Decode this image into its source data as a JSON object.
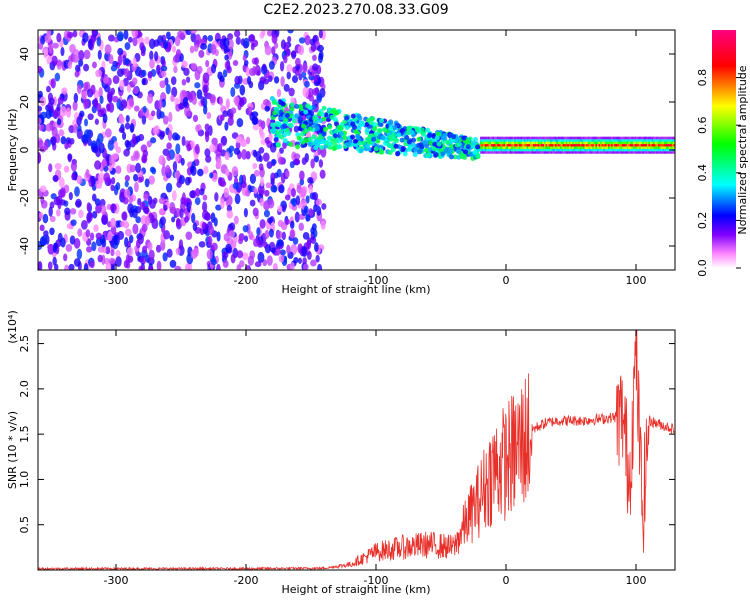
{
  "title": "C2E2.2023.270.08.33.G09",
  "chart_data": [
    {
      "type": "heatmap",
      "xlabel": "Height of straight line (km)",
      "ylabel": "Frequency (Hz)",
      "xlim": [
        -360,
        130
      ],
      "ylim": [
        -50,
        50
      ],
      "x_ticks": [
        -300,
        -200,
        -100,
        0,
        100
      ],
      "y_ticks": [
        -40,
        -20,
        0,
        20,
        40
      ],
      "colorbar": {
        "label": "Normalized spectral amplitude",
        "range": [
          0.0,
          1.0
        ],
        "ticks": [
          0.0,
          0.2,
          0.4,
          0.6,
          0.8
        ],
        "colormap": [
          "#ffffff",
          "#ff88ff",
          "#8000ff",
          "#0000ff",
          "#00ffff",
          "#00ff00",
          "#ffff00",
          "#ff0000",
          "#ff0080"
        ]
      },
      "regions": [
        {
          "description_x_range": [
            -360,
            -140
          ],
          "freq_range": [
            -50,
            50
          ],
          "amplitude_range": [
            0.05,
            0.25
          ]
        },
        {
          "description_x_range": [
            -180,
            -20
          ],
          "freq_center": [
            12,
            0
          ],
          "freq_halfwidth": [
            10,
            4
          ],
          "amplitude_range": [
            0.2,
            0.5
          ]
        },
        {
          "description_x_range": [
            -20,
            130
          ],
          "freq_center": 2,
          "freq_halfwidth": 3,
          "amplitude_range": [
            0.4,
            0.95
          ]
        }
      ]
    },
    {
      "type": "line",
      "xlabel": "Height of straight line (km)",
      "ylabel": "SNR (10 * v/v)",
      "y_scale_label": "(x10⁴)",
      "xlim": [
        -360,
        130
      ],
      "ylim": [
        0,
        26500
      ],
      "x_ticks": [
        -300,
        -200,
        -100,
        0,
        100
      ],
      "y_ticks": [
        5000,
        10000,
        15000,
        20000,
        25000
      ],
      "y_tick_labels": [
        "0.5",
        "1.0",
        "1.5",
        "2.0",
        "2.5"
      ],
      "series": [
        {
          "color": "#e8302a",
          "x": [
            -360,
            -300,
            -200,
            -140,
            -120,
            -100,
            -80,
            -60,
            -40,
            -30,
            -20,
            -10,
            0,
            10,
            20,
            30,
            40,
            60,
            80,
            90,
            95,
            100,
            105,
            110,
            120,
            130
          ],
          "y": [
            150,
            150,
            150,
            200,
            600,
            2000,
            2500,
            2800,
            2500,
            5500,
            8000,
            11000,
            12000,
            13500,
            15500,
            16200,
            16500,
            16500,
            16800,
            17000,
            10000,
            24000,
            6000,
            16500,
            16000,
            15500
          ]
        }
      ]
    }
  ]
}
